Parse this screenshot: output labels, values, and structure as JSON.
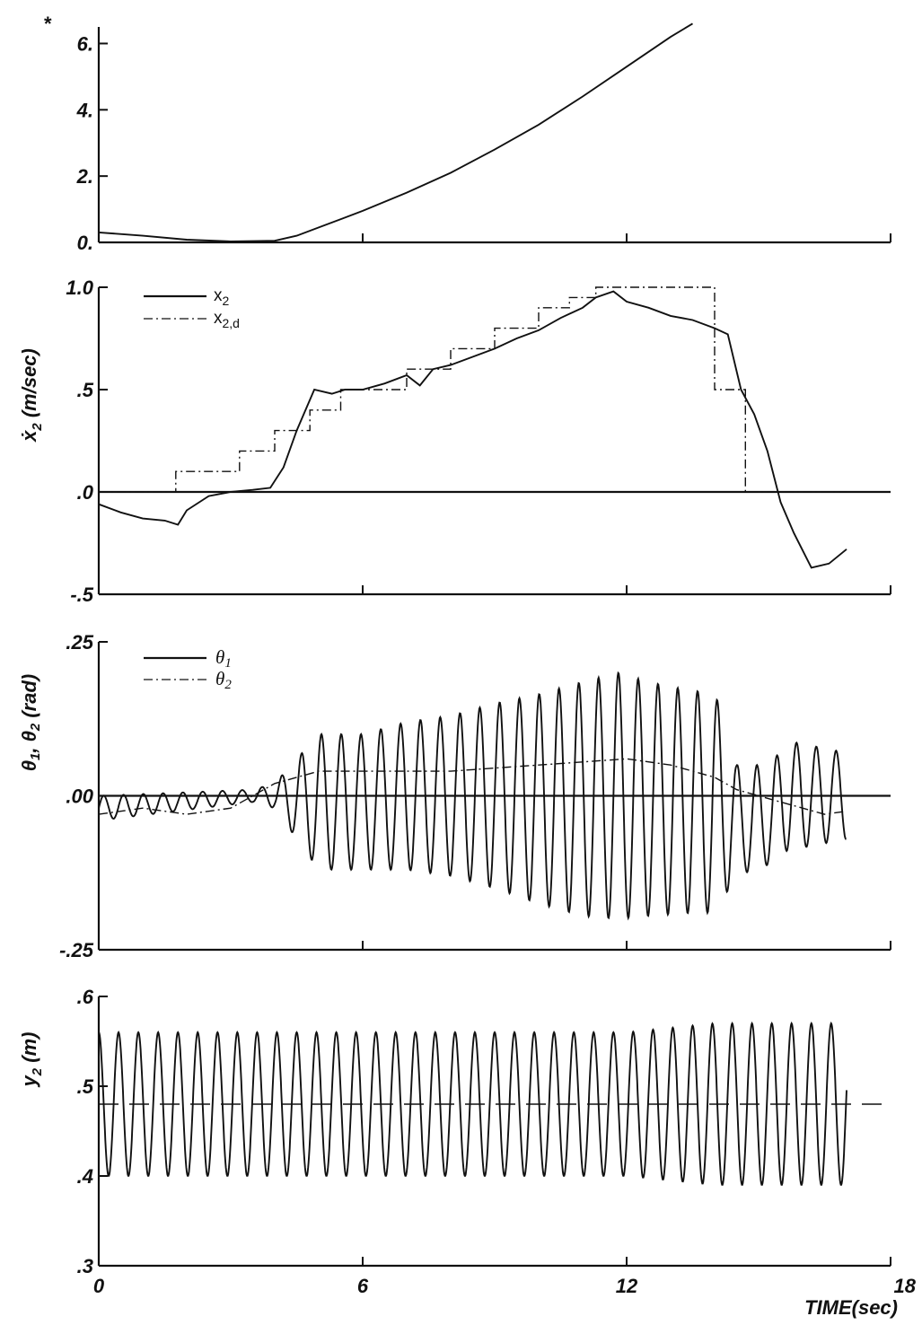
{
  "chart_data": [
    {
      "type": "line",
      "title": "",
      "xlabel": "",
      "ylabel": "",
      "xlim": [
        0,
        18
      ],
      "ylim": [
        0,
        6.5
      ],
      "y_ticks": [
        0,
        2,
        4,
        6
      ],
      "y_tick_labels": [
        "0.",
        "2.",
        "4.",
        "6."
      ],
      "x_ticks": [
        0,
        6,
        12,
        18
      ],
      "corner_mark": "*",
      "grid": false,
      "series": [
        {
          "style": "solid",
          "x": [
            0,
            1,
            2,
            3,
            4,
            4.5,
            5,
            6,
            7,
            8,
            9,
            10,
            11,
            12,
            13,
            13.5
          ],
          "y": [
            0.3,
            0.2,
            0.08,
            0.03,
            0.05,
            0.2,
            0.45,
            0.95,
            1.5,
            2.1,
            2.8,
            3.55,
            4.4,
            5.3,
            6.2,
            6.6
          ]
        }
      ]
    },
    {
      "type": "line",
      "ylabel": "x2 (m/sec)",
      "xlim": [
        0,
        18
      ],
      "ylim": [
        -0.5,
        1.0
      ],
      "y_ticks": [
        -0.5,
        0,
        0.5,
        1.0
      ],
      "y_tick_labels": [
        "-.5",
        ".0",
        ".5",
        "1.0"
      ],
      "x_ticks": [
        0,
        6,
        12,
        18
      ],
      "legend_position": "top-left",
      "grid": false,
      "zero_line": true,
      "series": [
        {
          "name": "x",
          "sub": "2",
          "style": "solid",
          "x": [
            0,
            0.5,
            1,
            1.5,
            1.8,
            2,
            2.5,
            3,
            3.5,
            3.9,
            4.2,
            4.5,
            4.9,
            5.3,
            5.6,
            6,
            6.5,
            7,
            7.3,
            7.6,
            8,
            8.5,
            9,
            9.5,
            10,
            10.5,
            11,
            11.3,
            11.7,
            12,
            12.5,
            13,
            13.5,
            14,
            14.3,
            14.6,
            14.9,
            15.2,
            15.5,
            15.8,
            16.2,
            16.6,
            17
          ],
          "y": [
            -0.06,
            -0.1,
            -0.13,
            -0.14,
            -0.16,
            -0.09,
            -0.02,
            0.0,
            0.01,
            0.02,
            0.12,
            0.3,
            0.5,
            0.48,
            0.5,
            0.5,
            0.53,
            0.57,
            0.52,
            0.6,
            0.62,
            0.66,
            0.7,
            0.75,
            0.79,
            0.85,
            0.9,
            0.95,
            0.98,
            0.93,
            0.9,
            0.86,
            0.84,
            0.8,
            0.77,
            0.5,
            0.38,
            0.2,
            -0.05,
            -0.2,
            -0.37,
            -0.35,
            -0.28
          ]
        },
        {
          "name": "x",
          "sub": "2,d",
          "style": "dash-dot",
          "x": [
            0,
            1.75,
            1.75,
            3.2,
            3.2,
            4.0,
            4.0,
            4.8,
            4.8,
            5.5,
            5.5,
            7.0,
            7.0,
            8.0,
            8.0,
            9.0,
            9.0,
            10.0,
            10.0,
            10.7,
            10.7,
            11.3,
            11.3,
            14.0,
            14.0,
            14.7,
            14.7,
            15.05,
            15.05,
            17
          ],
          "y": [
            0,
            0,
            0.1,
            0.1,
            0.2,
            0.2,
            0.3,
            0.3,
            0.4,
            0.4,
            0.5,
            0.5,
            0.6,
            0.6,
            0.7,
            0.7,
            0.8,
            0.8,
            0.9,
            0.9,
            0.95,
            0.95,
            1.0,
            1.0,
            0.5,
            0.5,
            0.0,
            0.0,
            0.0,
            0.0
          ]
        }
      ]
    },
    {
      "type": "line",
      "ylabel": "θ1, θ2 (rad)",
      "xlim": [
        0,
        18
      ],
      "ylim": [
        -0.25,
        0.25
      ],
      "y_ticks": [
        -0.25,
        0,
        0.25
      ],
      "y_tick_labels": [
        "-.25",
        ".00",
        ".25"
      ],
      "x_ticks": [
        0,
        6,
        12,
        18
      ],
      "legend_position": "top-left",
      "grid": false,
      "zero_line": true,
      "series": [
        {
          "name": "θ",
          "sub": "1",
          "style": "solid",
          "oscillation_period_sec": 0.45,
          "x": [
            0,
            3.5,
            4.0,
            5.0,
            6.0,
            7.0,
            8.0,
            9.0,
            10.0,
            11.0,
            11.8,
            12.5,
            13.5,
            14.0,
            14.5,
            15.3,
            15.6,
            17
          ],
          "amplitude": [
            0.02,
            0.01,
            0.02,
            0.11,
            0.11,
            0.12,
            0.13,
            0.15,
            0.17,
            0.19,
            0.2,
            0.19,
            0.18,
            0.18,
            0.09,
            0.08,
            0.09,
            0.07
          ],
          "offset": [
            -0.02,
            0.0,
            0.0,
            -0.01,
            -0.01,
            0.0,
            0.0,
            0.0,
            -0.005,
            -0.005,
            0.0,
            -0.005,
            -0.01,
            -0.01,
            -0.04,
            -0.03,
            0.0,
            0.0
          ]
        },
        {
          "name": "θ",
          "sub": "2",
          "style": "dash-dot",
          "x": [
            0,
            1,
            2,
            3,
            3.5,
            4.0,
            5.0,
            6.0,
            7.0,
            8.0,
            9.0,
            10.0,
            11.0,
            12.0,
            13.0,
            14.0,
            14.5,
            15.0,
            15.5,
            16.0,
            16.5,
            17
          ],
          "y": [
            -0.03,
            -0.02,
            -0.03,
            -0.02,
            0.0,
            0.02,
            0.04,
            0.04,
            0.04,
            0.04,
            0.045,
            0.05,
            0.055,
            0.06,
            0.05,
            0.03,
            0.01,
            0.0,
            -0.01,
            -0.02,
            -0.03,
            -0.025
          ]
        }
      ]
    },
    {
      "type": "line",
      "ylabel": "y2 (m)",
      "xlim": [
        0,
        18
      ],
      "ylim": [
        0.3,
        0.6
      ],
      "y_ticks": [
        0.3,
        0.4,
        0.5,
        0.6
      ],
      "y_tick_labels": [
        ".3",
        ".4",
        ".5",
        ".6"
      ],
      "x_ticks": [
        0,
        6,
        12,
        18
      ],
      "x_tick_labels": [
        "0",
        "6",
        "12",
        "18"
      ],
      "xlabel": "TIME(sec)",
      "grid": false,
      "series": [
        {
          "style": "solid",
          "oscillation_period_sec": 0.45,
          "x_end": 17,
          "center": 0.48,
          "x": [
            0,
            12,
            14,
            17
          ],
          "amplitude": [
            0.08,
            0.08,
            0.09,
            0.09
          ]
        },
        {
          "style": "dashed",
          "x": [
            0,
            17.9
          ],
          "y": [
            0.48,
            0.48
          ]
        }
      ]
    }
  ]
}
